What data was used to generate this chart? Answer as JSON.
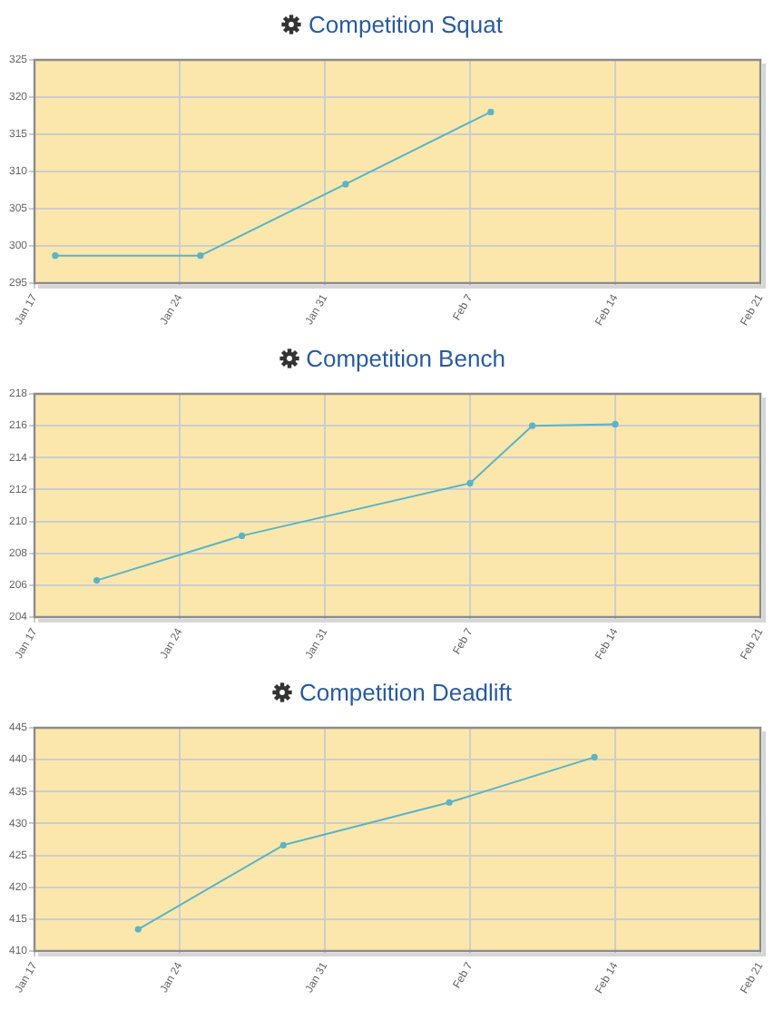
{
  "chart_data": [
    {
      "type": "line",
      "title": "Competition Squat",
      "x": [
        "--01-18",
        "--01-25",
        "--02-01",
        "--02-08"
      ],
      "values": [
        298.7,
        298.7,
        308.3,
        318.0
      ],
      "color": "#5ab4c7",
      "xlim": [
        "--01-17",
        "--02-21"
      ],
      "xticks": [
        {
          "value": "--01-17",
          "label": "Jan 17"
        },
        {
          "value": "--01-24",
          "label": "Jan 24"
        },
        {
          "value": "--01-31",
          "label": "Jan 31"
        },
        {
          "value": "--02-07",
          "label": "Feb 7"
        },
        {
          "value": "--02-14",
          "label": "Feb 14"
        },
        {
          "value": "--02-21",
          "label": "Feb 21"
        }
      ],
      "ylim": [
        295,
        325
      ],
      "yticks": [
        295,
        300,
        305,
        310,
        315,
        320,
        325
      ],
      "grid": true,
      "marker": "circle"
    },
    {
      "type": "line",
      "title": "Competition Bench",
      "x": [
        "--01-20",
        "--01-27",
        "--02-07",
        "--02-10",
        "--02-14"
      ],
      "values": [
        206.3,
        209.1,
        212.4,
        216.0,
        216.1
      ],
      "color": "#5ab4c7",
      "xlim": [
        "--01-17",
        "--02-21"
      ],
      "xticks": [
        {
          "value": "--01-17",
          "label": "Jan 17"
        },
        {
          "value": "--01-24",
          "label": "Jan 24"
        },
        {
          "value": "--01-31",
          "label": "Jan 31"
        },
        {
          "value": "--02-07",
          "label": "Feb 7"
        },
        {
          "value": "--02-14",
          "label": "Feb 14"
        },
        {
          "value": "--02-21",
          "label": "Feb 21"
        }
      ],
      "ylim": [
        204,
        218
      ],
      "yticks": [
        204,
        206,
        208,
        210,
        212,
        214,
        216,
        218
      ],
      "grid": true,
      "marker": "circle"
    },
    {
      "type": "line",
      "title": "Competition Deadlift",
      "x": [
        "--01-22",
        "--01-29",
        "--02-06",
        "--02-13"
      ],
      "values": [
        413.4,
        426.6,
        433.3,
        440.4
      ],
      "color": "#5ab4c7",
      "xlim": [
        "--01-17",
        "--02-21"
      ],
      "xticks": [
        {
          "value": "--01-17",
          "label": "Jan 17"
        },
        {
          "value": "--01-24",
          "label": "Jan 24"
        },
        {
          "value": "--01-31",
          "label": "Jan 31"
        },
        {
          "value": "--02-07",
          "label": "Feb 7"
        },
        {
          "value": "--02-14",
          "label": "Feb 14"
        },
        {
          "value": "--02-21",
          "label": "Feb 21"
        }
      ],
      "ylim": [
        410,
        445
      ],
      "yticks": [
        410,
        415,
        420,
        425,
        430,
        435,
        440,
        445
      ],
      "grid": true,
      "marker": "circle"
    }
  ]
}
